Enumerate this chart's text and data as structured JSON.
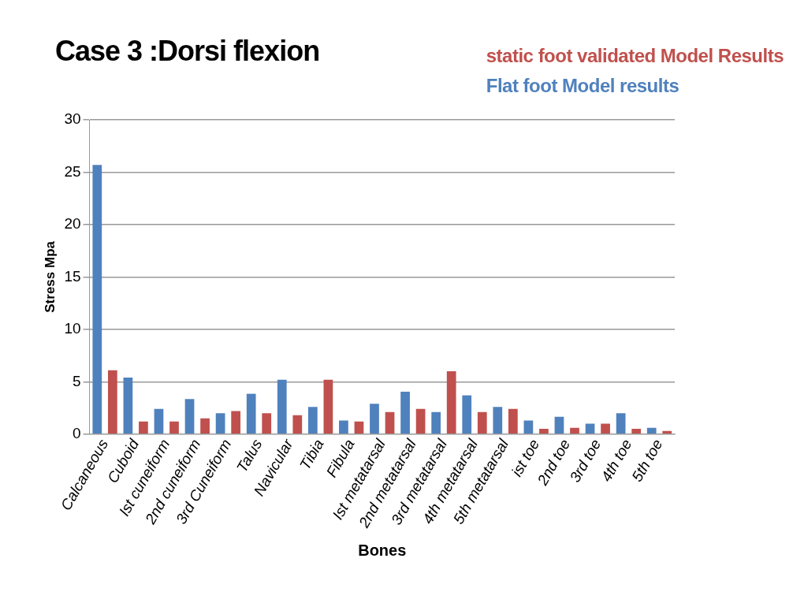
{
  "chart_data": {
    "type": "bar",
    "title": "Case 3 :Dorsi flexion",
    "xlabel": "Bones",
    "ylabel": "Stress Mpa",
    "categories": [
      "Calcaneous",
      "Cuboid",
      "Ist cuneiform",
      "2nd cuneiform",
      "3rd Cuneiform",
      "Talus",
      "Navicular",
      "Tibia",
      "Fibula",
      "Ist metatarsal",
      "2nd metatarsal",
      "3rd metatarsal",
      "4th metatarsal",
      "5th metatarsal",
      "ist toe",
      "2nd toe",
      "3rd toe",
      "4th toe",
      "5th toe"
    ],
    "series": [
      {
        "name": "Flat foot Model results",
        "color": "#4f81bd",
        "values": [
          25.7,
          5.4,
          2.4,
          3.35,
          2.0,
          3.85,
          5.2,
          2.6,
          1.3,
          2.9,
          4.05,
          2.1,
          3.7,
          2.6,
          1.3,
          1.65,
          1.0,
          2.0,
          0.6
        ]
      },
      {
        "name": "static foot validated Model Results",
        "color": "#c0504d",
        "values": [
          6.1,
          1.2,
          1.2,
          1.5,
          2.2,
          2.0,
          1.8,
          5.2,
          1.2,
          2.1,
          2.4,
          6.0,
          2.1,
          2.4,
          0.5,
          0.6,
          1.0,
          0.5,
          0.3
        ]
      }
    ],
    "ylim": [
      0,
      30
    ],
    "yticks": [
      0,
      5,
      10,
      15,
      20,
      25,
      30
    ],
    "grid": "y",
    "legend": "top right"
  }
}
